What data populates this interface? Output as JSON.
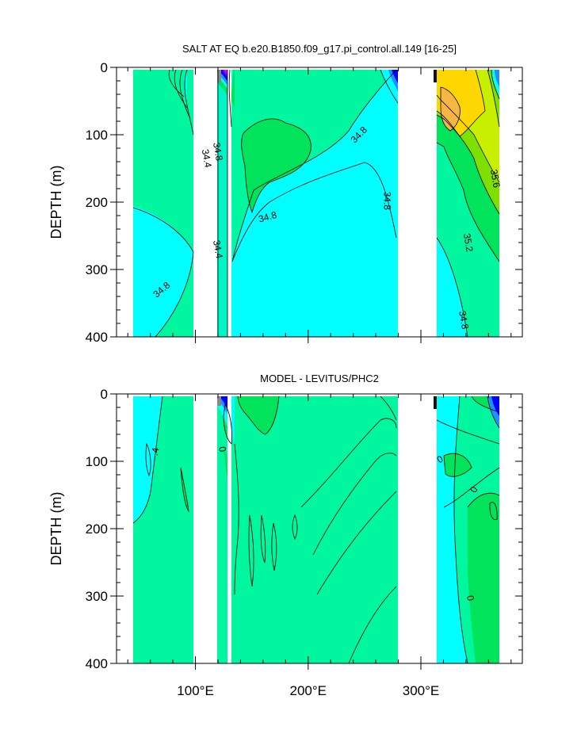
{
  "chart_data": [
    {
      "type": "contour",
      "title": "SALT AT EQ b.e20.B1850.f09_g17.pi_control.all.149 [16-25]",
      "ylabel": "DEPTH (m)",
      "xlabel": "",
      "xlim": [
        30,
        390
      ],
      "ylim": [
        0,
        400
      ],
      "y_reversed": true,
      "x_ticks": [
        {
          "value": 100,
          "label": "100°E"
        },
        {
          "value": 200,
          "label": "200°E"
        },
        {
          "value": 300,
          "label": "300°E"
        }
      ],
      "y_ticks": [
        {
          "value": 0,
          "label": "0"
        },
        {
          "value": 100,
          "label": "100"
        },
        {
          "value": 200,
          "label": "200"
        },
        {
          "value": 300,
          "label": "300"
        },
        {
          "value": 400,
          "label": "400"
        }
      ],
      "land_gaps": [
        [
          97,
          118
        ],
        [
          128,
          130
        ],
        [
          278,
          314
        ]
      ],
      "data_extent": [
        44,
        370
      ],
      "colors": {
        "low_salinity": "#00ffff",
        "mid_salinity": "#00f7a0",
        "high_salinity": "#00e35a",
        "max_salinity": "#ffd700"
      },
      "contour_labels": [
        {
          "text": "34.8",
          "x": 70,
          "y": 330,
          "rotate": -40
        },
        {
          "text": "34.4",
          "x": 110,
          "y": 135,
          "rotate": 80
        },
        {
          "text": "34.8",
          "x": 120,
          "y": 125,
          "rotate": 80
        },
        {
          "text": "34.4",
          "x": 120,
          "y": 270,
          "rotate": 80
        },
        {
          "text": "34.8",
          "x": 164,
          "y": 222,
          "rotate": -15
        },
        {
          "text": "34.8",
          "x": 245,
          "y": 100,
          "rotate": -45
        },
        {
          "text": "34.8",
          "x": 270,
          "y": 198,
          "rotate": 90
        },
        {
          "text": "35.6",
          "x": 366,
          "y": 165,
          "rotate": 80
        },
        {
          "text": "35.2",
          "x": 342,
          "y": 260,
          "rotate": 80
        },
        {
          "text": "34.8",
          "x": 338,
          "y": 375,
          "rotate": 80
        }
      ]
    },
    {
      "type": "contour",
      "title": "MODEL - LEVITUS/PHC2",
      "ylabel": "DEPTH (m)",
      "xlabel": "",
      "xlim": [
        30,
        390
      ],
      "ylim": [
        0,
        400
      ],
      "y_reversed": true,
      "x_ticks": [
        {
          "value": 100,
          "label": "100°E"
        },
        {
          "value": 200,
          "label": "200°E"
        },
        {
          "value": 300,
          "label": "300°E"
        }
      ],
      "y_ticks": [
        {
          "value": 0,
          "label": "0"
        },
        {
          "value": 100,
          "label": "100"
        },
        {
          "value": 200,
          "label": "200"
        },
        {
          "value": 300,
          "label": "300"
        },
        {
          "value": 400,
          "label": "400"
        }
      ],
      "land_gaps": [
        [
          97,
          118
        ],
        [
          128,
          130
        ],
        [
          278,
          314
        ]
      ],
      "data_extent": [
        44,
        370
      ],
      "colors": {
        "negative": "#00ffff",
        "near_zero": "#00f7a0",
        "positive": "#00e35a"
      },
      "contour_labels": [
        {
          "text": "-.4",
          "x": 64,
          "y": 88,
          "rotate": -80
        },
        {
          "text": "0",
          "x": 124,
          "y": 82,
          "rotate": 80
        },
        {
          "text": "0",
          "x": 317,
          "y": 97,
          "rotate": -30
        },
        {
          "text": "0",
          "x": 347,
          "y": 142,
          "rotate": -60
        },
        {
          "text": "0",
          "x": 344,
          "y": 303,
          "rotate": 80
        }
      ]
    }
  ]
}
